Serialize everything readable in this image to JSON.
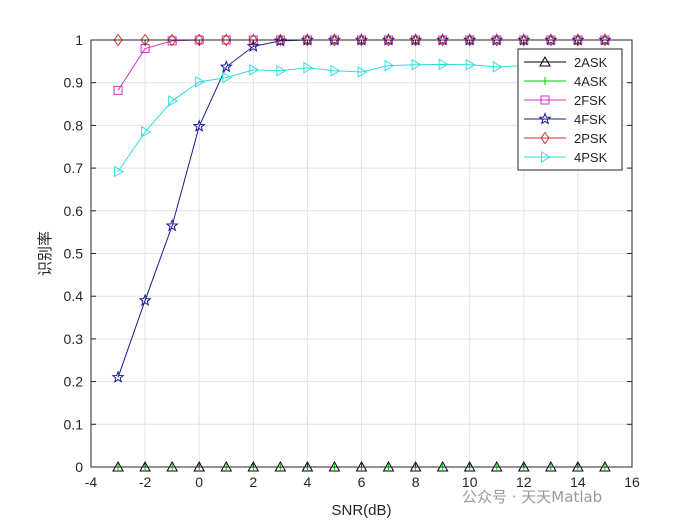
{
  "chart_data": {
    "type": "line",
    "title": "",
    "xlabel": "SNR(dB)",
    "ylabel": "识别率",
    "xlim": [
      -4,
      16
    ],
    "ylim": [
      0,
      1
    ],
    "xticks": [
      -4,
      -2,
      0,
      2,
      4,
      6,
      8,
      10,
      12,
      14,
      16
    ],
    "yticks": [
      0,
      0.1,
      0.2,
      0.3,
      0.4,
      0.5,
      0.6,
      0.7,
      0.8,
      0.9,
      1
    ],
    "grid": true,
    "legend_position": "top-right",
    "x": [
      -3,
      -2,
      -1,
      0,
      1,
      2,
      3,
      4,
      5,
      6,
      7,
      8,
      9,
      10,
      11,
      12,
      13,
      14,
      15
    ],
    "series": [
      {
        "name": "2ASK",
        "color": "#000000",
        "marker": "triangle-up",
        "values": [
          0,
          0,
          0,
          0,
          0,
          0,
          0,
          0,
          0,
          0,
          0,
          0,
          0,
          0,
          0,
          0,
          0,
          0,
          0
        ]
      },
      {
        "name": "4ASK",
        "color": "#00cc00",
        "marker": "plus",
        "values": [
          0,
          0,
          0,
          0,
          0,
          0,
          0,
          0,
          0,
          0,
          0,
          0,
          0,
          0,
          0,
          0,
          0,
          0,
          0
        ]
      },
      {
        "name": "2FSK",
        "color": "#cc33cc",
        "marker": "square",
        "values": [
          0.882,
          0.98,
          0.998,
          1,
          1,
          1,
          1,
          1,
          1,
          1,
          1,
          1,
          1,
          1,
          1,
          1,
          1,
          1,
          1
        ]
      },
      {
        "name": "4FSK",
        "color": "#1a1a99",
        "marker": "pentagram",
        "values": [
          0.21,
          0.39,
          0.565,
          0.798,
          0.937,
          0.985,
          0.998,
          1,
          1,
          1,
          1,
          1,
          1,
          1,
          1,
          1,
          1,
          1,
          1
        ]
      },
      {
        "name": "2PSK",
        "color": "#cc3333",
        "marker": "diamond",
        "values": [
          1,
          1,
          1,
          1,
          1,
          1,
          1,
          1,
          1,
          1,
          1,
          1,
          1,
          1,
          1,
          1,
          1,
          1,
          1
        ]
      },
      {
        "name": "4PSK",
        "color": "#33dddd",
        "marker": "triangle-right",
        "values": [
          0.692,
          0.785,
          0.857,
          0.902,
          0.912,
          0.93,
          0.928,
          0.935,
          0.928,
          0.925,
          0.94,
          0.942,
          0.943,
          0.942,
          0.937,
          0.94,
          0.945,
          0.945,
          0.945
        ]
      }
    ]
  },
  "watermark": "公众号 · 天天Matlab"
}
